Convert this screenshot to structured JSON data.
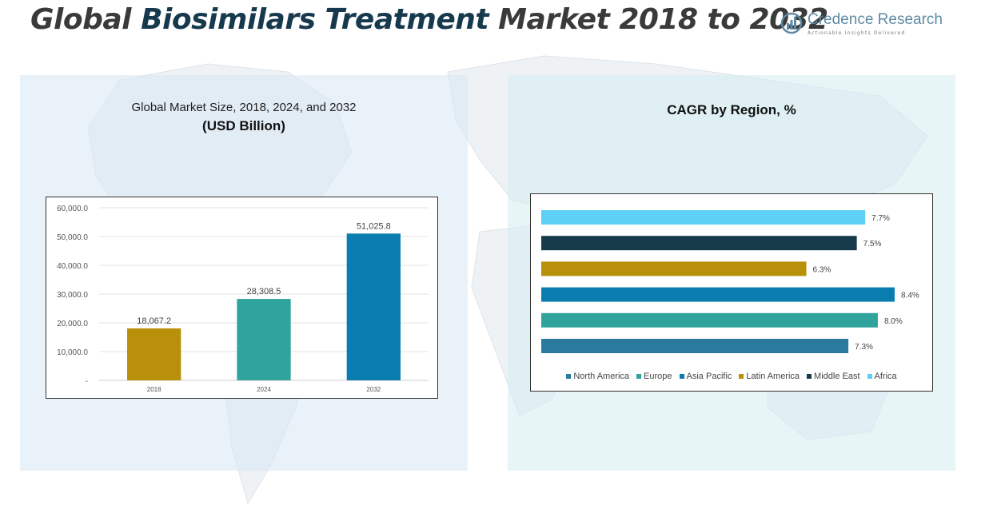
{
  "header": {
    "title_part1": "Global ",
    "title_part2": "Biosimilars Treatment",
    "title_part3": " Market 2018 to 2032"
  },
  "logo": {
    "name": "Credence Research",
    "tagline": "Actionable Insights Delivered",
    "icon": "bar-chart-circle-icon"
  },
  "left_panel": {
    "title": "Global Market Size, 2018, 2024, and 2032",
    "subtitle": "(USD Billion)"
  },
  "right_panel": {
    "title": "CAGR by Region, %"
  },
  "chart_data": [
    {
      "type": "bar",
      "title": "Global Market Size, 2018, 2024, and 2032",
      "subtitle": "(USD Billion)",
      "categories": [
        "2018",
        "2024",
        "2032"
      ],
      "values": [
        18067.2,
        28308.5,
        51025.8
      ],
      "value_labels": [
        "18,067.2",
        "28,308.5",
        "51,025.8"
      ],
      "colors": [
        "#b8900a",
        "#2fa39c",
        "#0a7db0"
      ],
      "ylim": [
        0,
        60000
      ],
      "yticks": [
        0,
        10000,
        20000,
        30000,
        40000,
        50000,
        60000
      ],
      "ytick_labels": [
        "-",
        "10,000.0",
        "20,000.0",
        "30,000.0",
        "40,000.0",
        "50,000.0",
        "60,000.0"
      ],
      "grid": true
    },
    {
      "type": "bar",
      "orientation": "horizontal",
      "title": "CAGR by Region, %",
      "series": [
        {
          "name": "North America",
          "value": 7.3,
          "label": "7.3%",
          "color": "#2a7a9e"
        },
        {
          "name": "Europe",
          "value": 8.0,
          "label": "8.0%",
          "color": "#2fa39c"
        },
        {
          "name": "Asia Pacific",
          "value": 8.4,
          "label": "8.4%",
          "color": "#0a7db0"
        },
        {
          "name": "Latin America",
          "value": 6.3,
          "label": "6.3%",
          "color": "#b8900a"
        },
        {
          "name": "Middle East",
          "value": 7.5,
          "label": "7.5%",
          "color": "#173b4b"
        },
        {
          "name": "Africa",
          "value": 7.7,
          "label": "7.7%",
          "color": "#5ecff5"
        }
      ],
      "xlim": [
        0,
        8.4
      ],
      "legend": "bottom",
      "grid": false
    }
  ]
}
